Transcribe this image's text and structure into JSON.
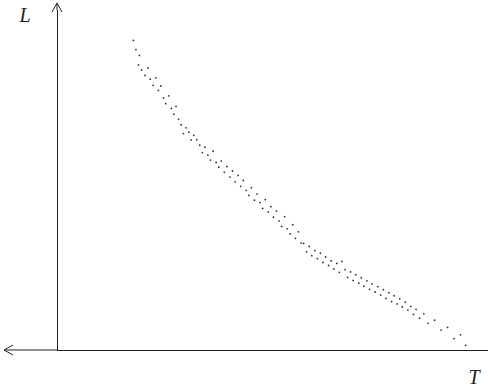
{
  "chart_data": {
    "type": "scatter",
    "xlabel": "T",
    "ylabel": "L",
    "x": [
      17.6,
      18.2,
      19.0,
      18.8,
      19.5,
      20.3,
      21.0,
      21.5,
      22.2,
      22.8,
      23.4,
      24.0,
      24.6,
      25.1,
      25.8,
      26.4,
      27.0,
      27.5,
      28.1,
      28.7,
      29.2,
      29.8,
      30.5,
      31.0,
      31.6,
      32.3,
      33.0,
      33.6,
      34.2,
      34.9,
      35.5,
      36.1,
      36.8,
      37.4,
      38.0,
      38.7,
      39.3,
      40.0,
      40.6,
      41.2,
      41.9,
      42.5,
      43.1,
      43.8,
      44.4,
      45.0,
      45.7,
      46.3,
      47.0,
      47.6,
      48.2,
      48.9,
      49.5,
      50.1,
      50.8,
      51.4,
      52.0,
      52.7,
      53.3,
      54.0,
      54.6,
      55.2,
      55.9,
      56.5,
      57.1,
      57.8,
      58.4,
      59.0,
      59.7,
      60.3,
      61.0,
      61.6,
      62.2,
      62.9,
      63.5,
      64.1,
      64.8,
      65.4,
      66.0,
      66.7,
      67.3,
      68.0,
      68.6,
      69.2,
      69.9,
      70.5,
      71.1,
      71.8,
      72.4,
      73.0,
      73.7,
      74.3,
      75.0,
      75.6,
      76.2,
      76.9,
      77.5,
      78.1,
      78.8,
      79.4,
      80.0,
      80.7,
      81.3,
      82.0,
      82.6,
      83.2,
      84.0,
      85.0,
      86.0,
      87.5,
      89.0,
      90.5,
      92.0,
      93.5,
      94.7
    ],
    "y": [
      91.2,
      88.5,
      86.8,
      84.0,
      82.5,
      80.9,
      83.1,
      79.8,
      78.0,
      80.2,
      76.5,
      77.8,
      74.3,
      72.6,
      74.9,
      71.2,
      69.5,
      71.8,
      68.0,
      66.4,
      63.8,
      65.5,
      64.2,
      61.9,
      63.3,
      62.0,
      60.4,
      58.2,
      59.8,
      57.5,
      56.0,
      58.6,
      55.3,
      53.9,
      55.7,
      52.4,
      54.1,
      51.0,
      52.8,
      49.6,
      51.5,
      48.3,
      50.0,
      47.1,
      45.6,
      47.9,
      44.2,
      46.0,
      43.5,
      41.8,
      44.4,
      40.7,
      42.3,
      39.2,
      41.0,
      38.1,
      36.5,
      39.4,
      35.8,
      34.3,
      37.0,
      33.0,
      34.9,
      31.6,
      31.5,
      29.0,
      30.6,
      27.9,
      29.4,
      27.0,
      28.6,
      25.9,
      27.5,
      25.0,
      26.4,
      24.0,
      25.6,
      23.0,
      26.2,
      23.8,
      21.5,
      23.1,
      20.6,
      22.3,
      19.8,
      21.4,
      18.9,
      20.5,
      18.0,
      19.6,
      17.2,
      18.8,
      16.3,
      17.9,
      15.3,
      17.0,
      14.4,
      16.1,
      13.7,
      15.2,
      12.8,
      14.2,
      11.9,
      13.0,
      10.6,
      12.1,
      9.5,
      10.8,
      8.0,
      8.9,
      6.0,
      6.8,
      3.5,
      4.6,
      1.5
    ],
    "xlim": [
      0,
      100
    ],
    "ylim": [
      0,
      100
    ],
    "xticks": [],
    "yticks": [],
    "tick_labels": false,
    "color": "#333333",
    "marker": "dot"
  }
}
